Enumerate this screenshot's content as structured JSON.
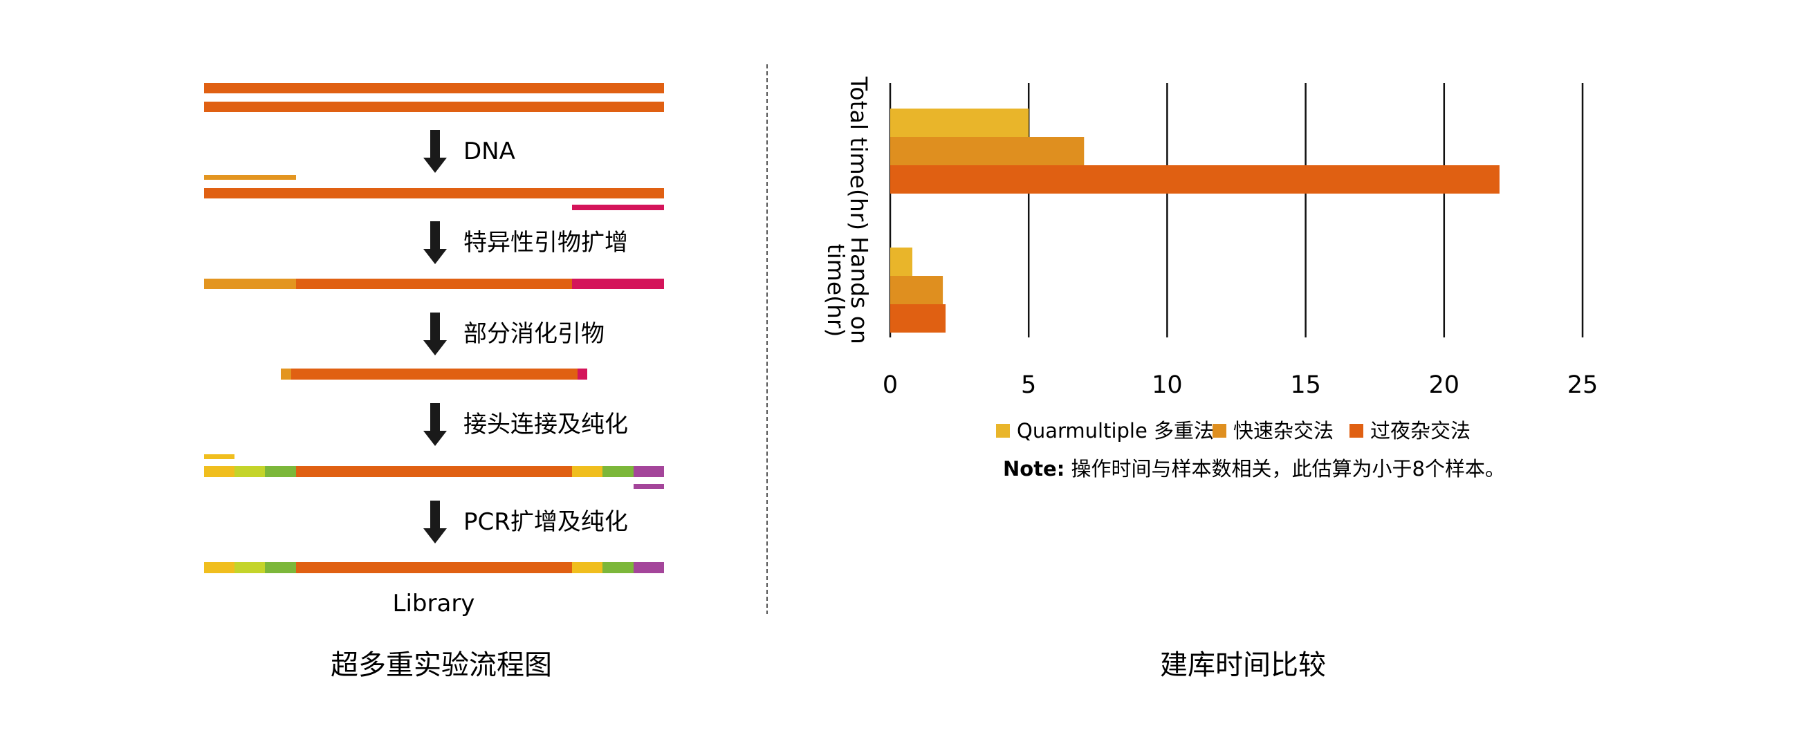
{
  "colors": {
    "dna": "#e06012",
    "primer_orange": "#e39520",
    "primer_red": "#d4145a",
    "adapter_yellow": "#f0be1e",
    "adapter_lime": "#c4d42a",
    "adapter_green": "#7cb73a",
    "adapter_purple": "#a4459a",
    "arrow": "#1a1a1a",
    "series_quarmultiple": "#e9b52a",
    "series_fast": "#df8f1f",
    "series_overnight": "#e06012"
  },
  "workflow": {
    "steps": [
      "DNA",
      "特异性引物扩增",
      "部分消化引物",
      "接头连接及纯化",
      "PCR扩增及纯化"
    ],
    "result_label": "Library",
    "caption": "超多重实验流程图"
  },
  "chart_caption": "建库时间比较",
  "note": {
    "bold": "Note:",
    "text": " 操作时间与样本数相关，此估算为小于8个样本。"
  },
  "chart_data": {
    "type": "bar",
    "orientation": "horizontal",
    "categories": [
      "Total time(hr)",
      "Hands on time(hr)"
    ],
    "series": [
      {
        "name": "Quarmultiple 多重法",
        "values": [
          5,
          0.8
        ]
      },
      {
        "name": "快速杂交法",
        "values": [
          7,
          1.9
        ]
      },
      {
        "name": "过夜杂交法",
        "values": [
          22,
          2.0
        ]
      }
    ],
    "xlim": [
      0,
      25
    ],
    "xticks": [
      "0",
      "5",
      "10",
      "15",
      "20",
      "25"
    ],
    "grid": "vertical",
    "legend": "bottom"
  }
}
